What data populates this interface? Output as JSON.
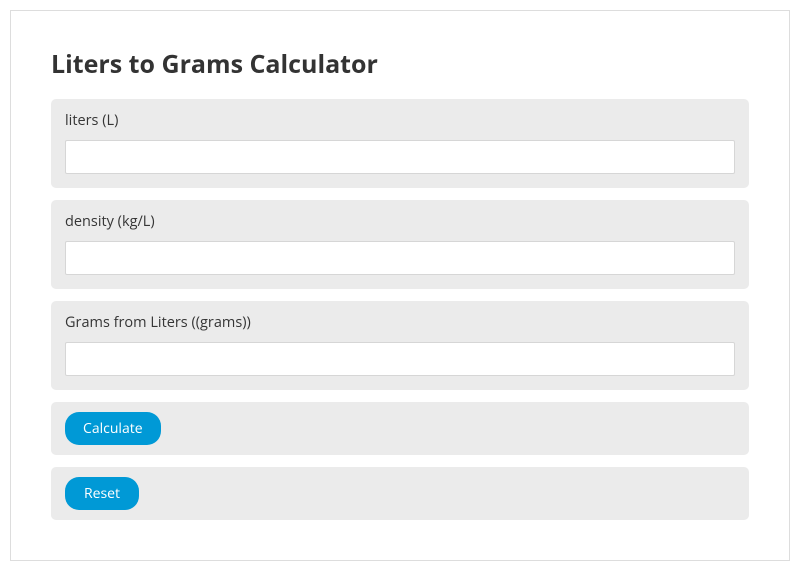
{
  "title": "Liters to Grams Calculator",
  "fields": {
    "liters": {
      "label": "liters (L)",
      "value": ""
    },
    "density": {
      "label": "density (kg/L)",
      "value": ""
    },
    "result": {
      "label": "Grams from Liters ((grams))",
      "value": ""
    }
  },
  "buttons": {
    "calculate": "Calculate",
    "reset": "Reset"
  },
  "colors": {
    "border": "#dddddd",
    "field_bg": "#ebebeb",
    "input_border": "#d6d6d6",
    "button_bg": "#0099d6",
    "button_text": "#ffffff",
    "title_text": "#333333",
    "label_text": "#353535"
  }
}
